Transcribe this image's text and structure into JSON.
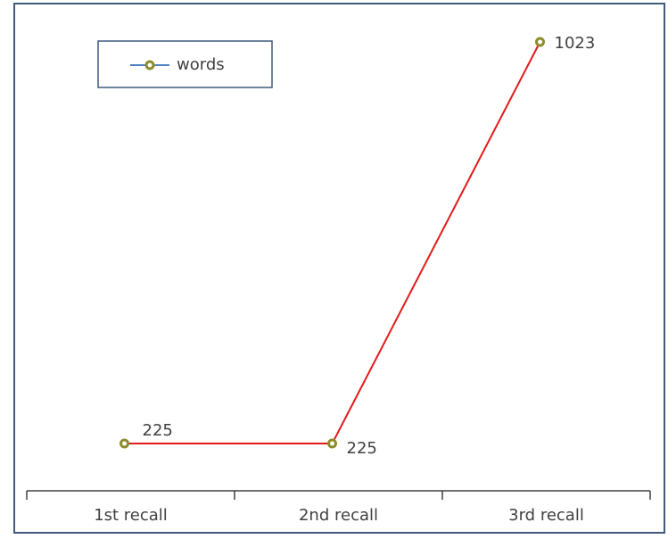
{
  "chart_data": {
    "type": "line",
    "categories": [
      "1st recall",
      "2nd recall",
      "3rd recall"
    ],
    "series": [
      {
        "name": "words",
        "color": "#e31a1a",
        "marker_color": "#8c8c2a",
        "values": [
          225,
          225,
          1023
        ]
      }
    ],
    "legend": "upper left"
  }
}
